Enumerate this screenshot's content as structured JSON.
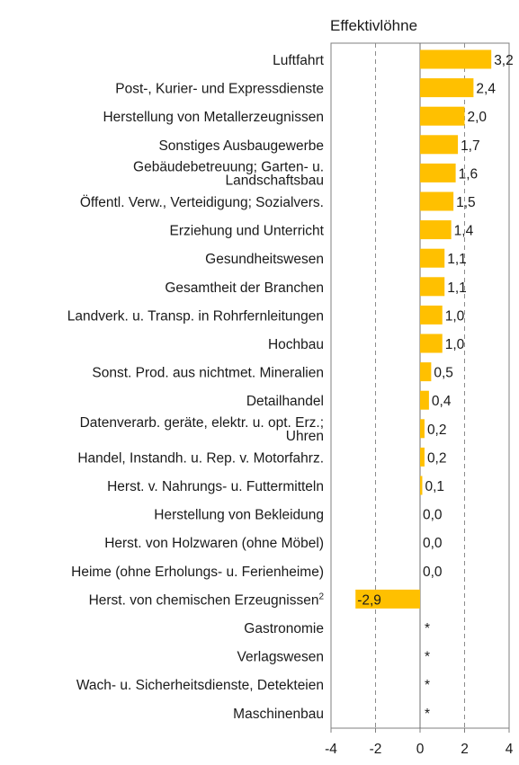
{
  "chart_data": {
    "type": "bar",
    "orientation": "horizontal",
    "title": "Effektivlöhne",
    "categories": [
      "Luftfahrt",
      "Post-, Kurier- und Expressdienste",
      "Herstellung von Metallerzeugnissen",
      "Sonstiges Ausbaugewerbe",
      "Gebäudebetreuung; Garten- u. Landschaftsbau",
      "Öffentl. Verw., Verteidigung; Sozialvers.",
      "Erziehung und Unterricht",
      "Gesundheitswesen",
      "Gesamtheit der Branchen",
      "Landverk. u. Transp. in Rohrfernleitungen",
      "Hochbau",
      "Sonst. Prod. aus nichtmet. Mineralien",
      "Detailhandel",
      "Datenverarb. geräte, elektr. u. opt. Erz.; Uhren",
      "Handel, Instandh. u. Rep. v. Motorfahrz.",
      "Herst. v. Nahrungs- u. Futtermitteln",
      "Herstellung von Bekleidung",
      "Herst. von Holzwaren (ohne Möbel)",
      "Heime (ohne Erholungs- u. Ferienheime)",
      "Herst. von chemischen Erzeugnissen",
      "Gastronomie",
      "Verlagswesen",
      "Wach- u. Sicherheitsdienste, Detekteien",
      "Maschinenbau"
    ],
    "category_lines": [
      [
        "Luftfahrt"
      ],
      [
        "Post-, Kurier- und Expressdienste"
      ],
      [
        "Herstellung von Metallerzeugnissen"
      ],
      [
        "Sonstiges Ausbaugewerbe"
      ],
      [
        "Gebäudebetreuung; Garten- u.",
        "Landschaftsbau"
      ],
      [
        "Öffentl. Verw., Verteidigung; Sozialvers."
      ],
      [
        "Erziehung und Unterricht"
      ],
      [
        "Gesundheitswesen"
      ],
      [
        "Gesamtheit der Branchen"
      ],
      [
        "Landverk. u. Transp. in Rohrfernleitungen"
      ],
      [
        "Hochbau"
      ],
      [
        "Sonst. Prod. aus nichtmet. Mineralien"
      ],
      [
        "Detailhandel"
      ],
      [
        "Datenverarb. geräte, elektr. u. opt. Erz.;",
        "Uhren"
      ],
      [
        "Handel, Instandh. u. Rep. v. Motorfahrz."
      ],
      [
        "Herst. v. Nahrungs- u. Futtermitteln"
      ],
      [
        "Herstellung von Bekleidung"
      ],
      [
        "Herst. von Holzwaren (ohne Möbel)"
      ],
      [
        "Heime (ohne Erholungs- u. Ferienheime)"
      ],
      [
        "Herst. von chemischen Erzeugnissen"
      ],
      [
        "Gastronomie"
      ],
      [
        "Verlagswesen"
      ],
      [
        "Wach- u. Sicherheitsdienste, Detekteien"
      ],
      [
        "Maschinenbau"
      ]
    ],
    "superscripts": [
      "",
      "",
      "",
      "",
      "",
      "",
      "",
      "",
      "",
      "",
      "",
      "",
      "",
      "",
      "",
      "",
      "",
      "",
      "",
      "2",
      "",
      "",
      "",
      ""
    ],
    "values": [
      3.2,
      2.4,
      2.0,
      1.7,
      1.6,
      1.5,
      1.4,
      1.1,
      1.1,
      1.0,
      1.0,
      0.5,
      0.4,
      0.2,
      0.2,
      0.1,
      0.0,
      0.0,
      0.0,
      -2.9,
      null,
      null,
      null,
      null
    ],
    "value_labels": [
      "3,2",
      "2,4",
      "2,0",
      "1,7",
      "1,6",
      "1,5",
      "1,4",
      "1,1",
      "1,1",
      "1,0",
      "1,0",
      "0,5",
      "0,4",
      "0,2",
      "0,2",
      "0,1",
      "0,0",
      "0,0",
      "0,0",
      "-2,9",
      "*",
      "*",
      "*",
      "*"
    ],
    "xlim": [
      -4,
      4
    ],
    "xticks": [
      -4,
      -2,
      0,
      2,
      4
    ],
    "xtick_labels": [
      "-4",
      "-2",
      "0",
      "2",
      "4"
    ],
    "grid": "vertical dashed at -2 and 2",
    "bar_color": "#FFC000",
    "frame_color": "#7f7f7f",
    "grid_color": "#8c8c8c"
  }
}
